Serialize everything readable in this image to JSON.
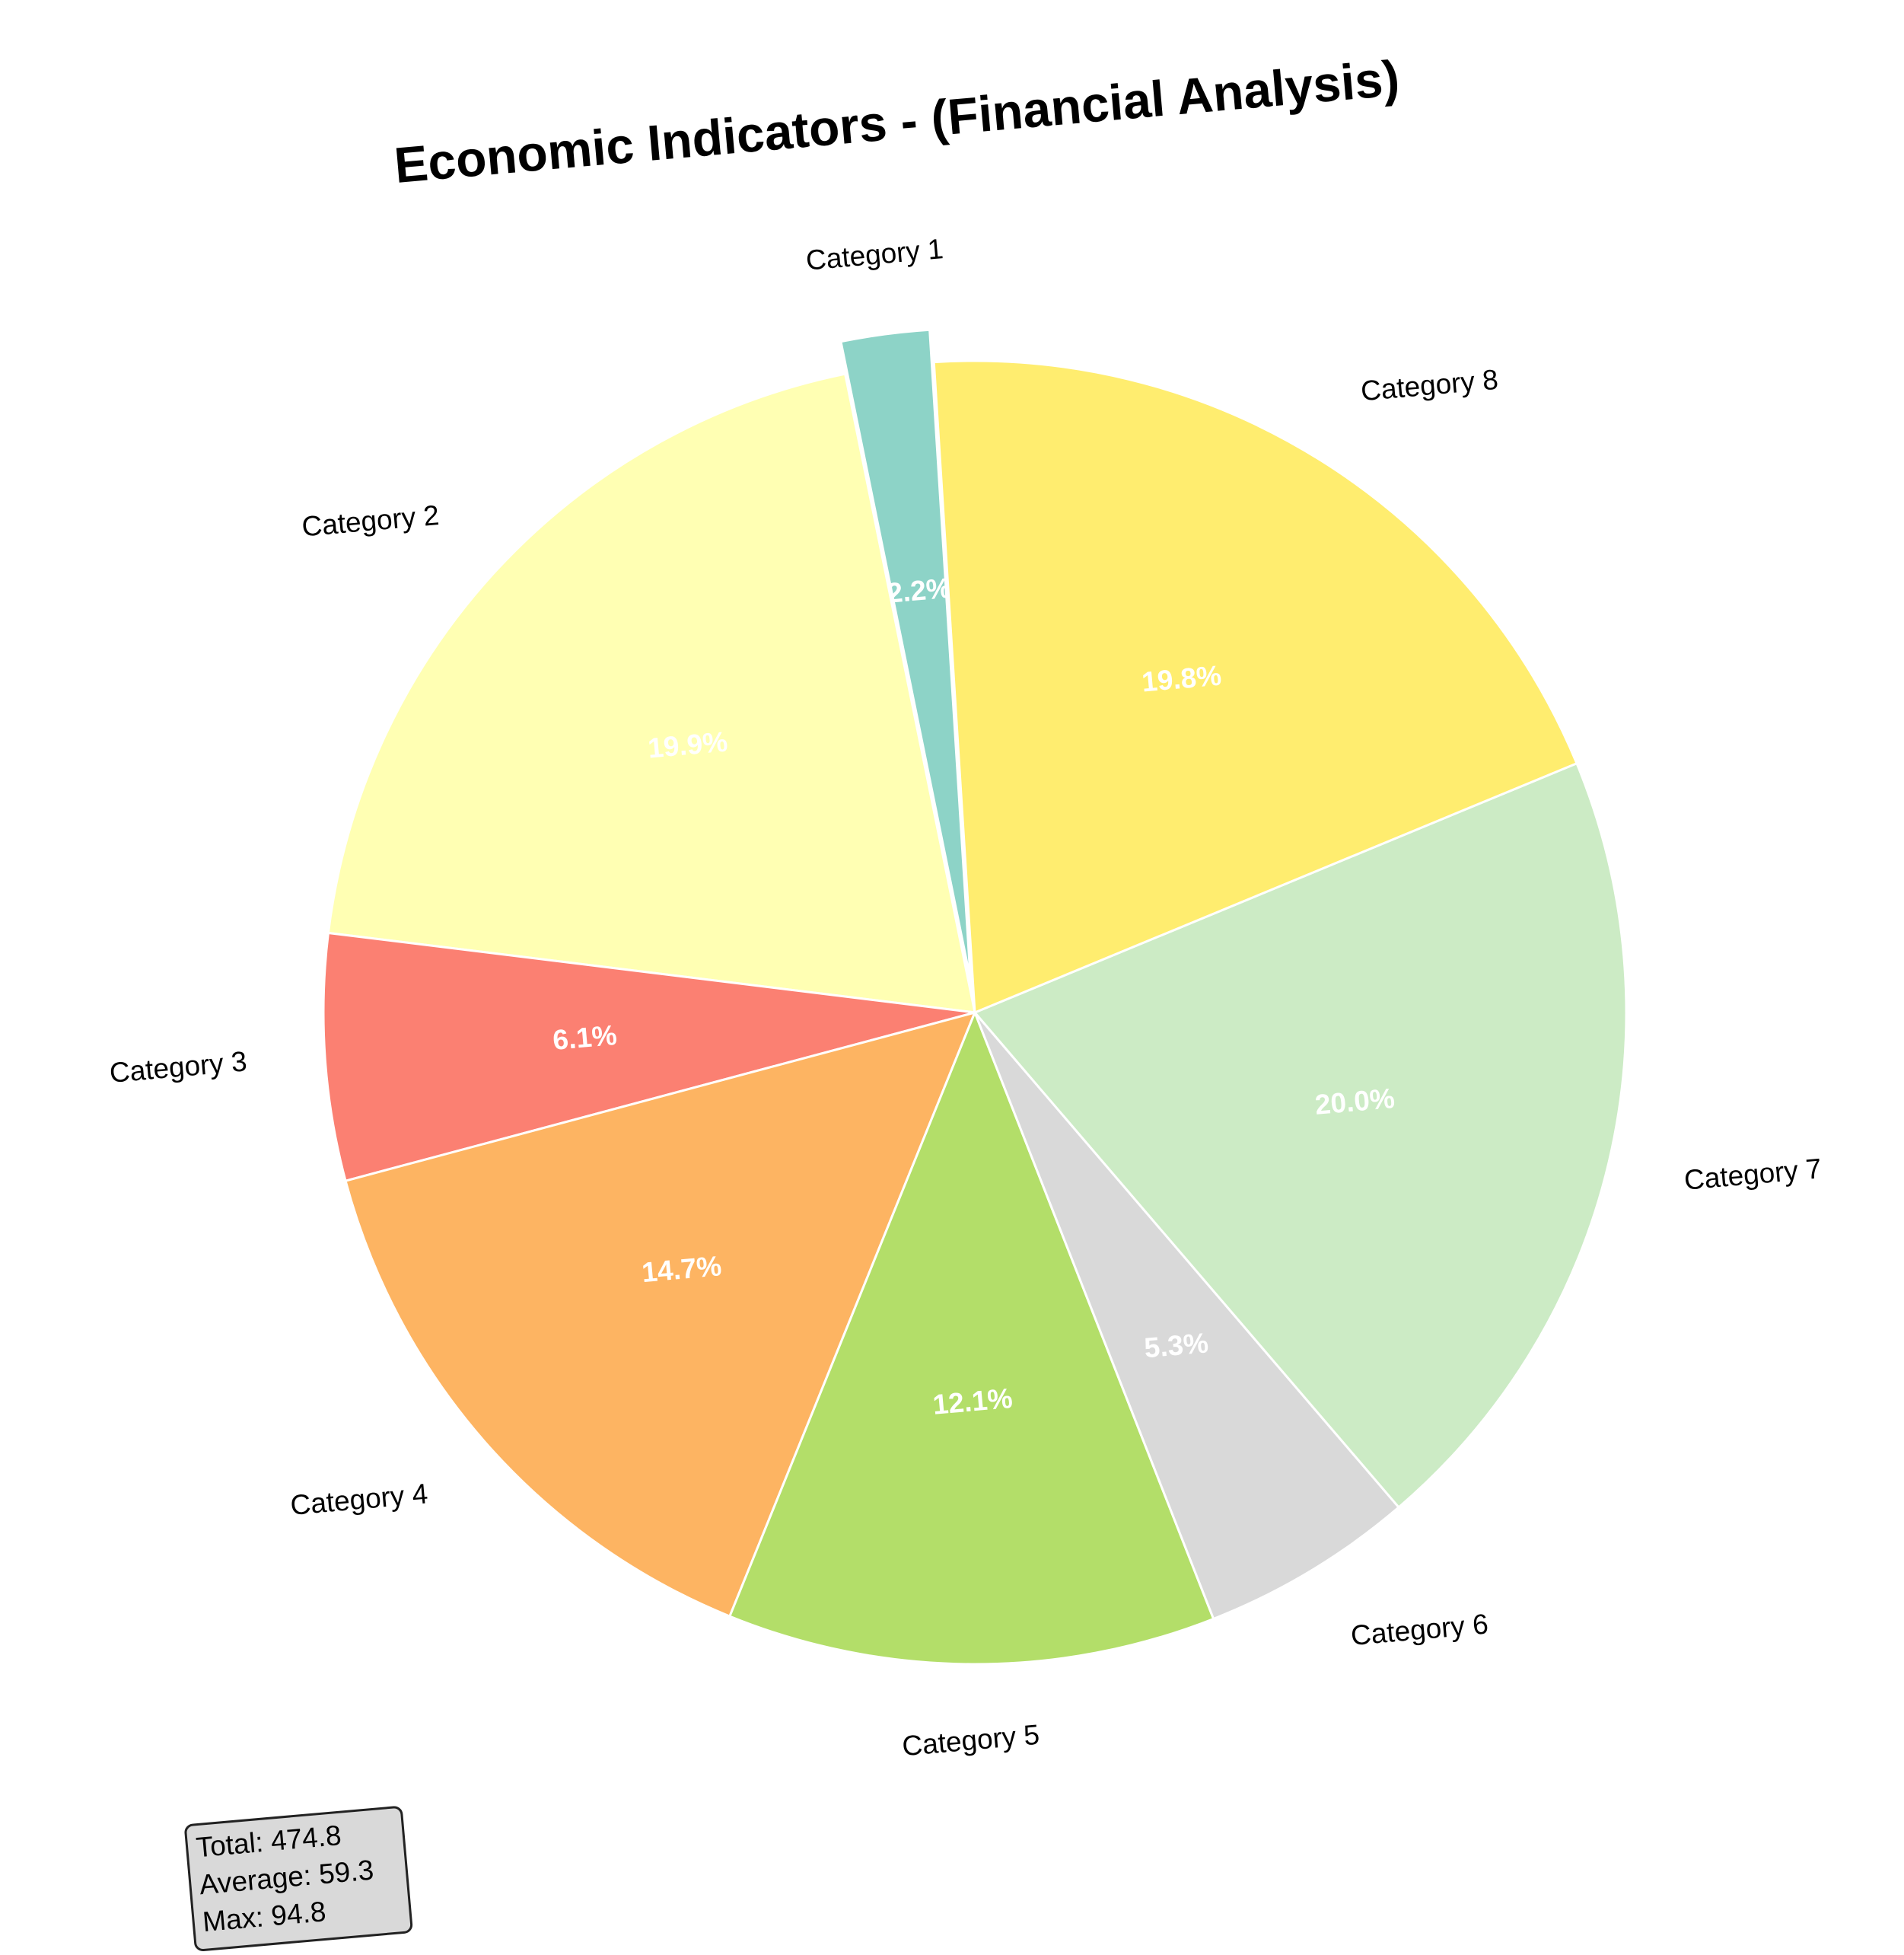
{
  "chart_data": {
    "type": "pie",
    "title": "Economic Indicators - (Financial Analysis)",
    "categories": [
      "Category 1",
      "Category 2",
      "Category 3",
      "Category 4",
      "Category 5",
      "Category 6",
      "Category 7",
      "Category 8"
    ],
    "values": [
      10.4,
      94.3,
      29.0,
      69.8,
      57.5,
      25.2,
      94.8,
      93.8
    ],
    "value_labels": [
      "2.2%",
      "19.9%",
      "6.1%",
      "14.7%",
      "12.1%",
      "5.3%",
      "20.0%",
      "19.8%"
    ],
    "colors": [
      "#8dd3c7",
      "#ffffb3",
      "#fb8072",
      "#fdb462",
      "#b3de69",
      "#d9d9d9",
      "#ccebc5",
      "#ffed6f"
    ],
    "annotation": [
      "Total: 474.8",
      "Average: 59.3",
      "Max: 94.8"
    ]
  }
}
